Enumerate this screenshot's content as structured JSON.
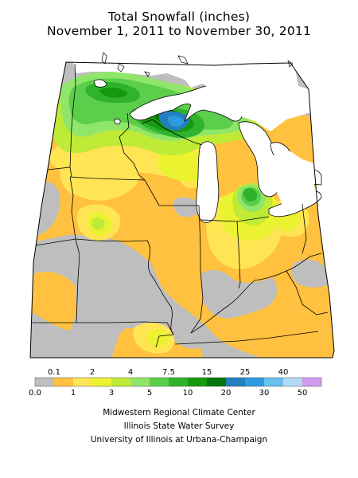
{
  "title": {
    "line1": "Total Snowfall (inches)",
    "line2": "November 1, 2011 to November 30, 2011"
  },
  "colors": {
    "lake": "#ffffff",
    "border": "#000000",
    "panel_background": "#ffffff"
  },
  "legend": {
    "upper_labels": [
      "0.1",
      "2",
      "4",
      "7.5",
      "15",
      "25",
      "40"
    ],
    "lower_labels": [
      "0.0",
      "1",
      "3",
      "5",
      "10",
      "20",
      "30",
      "50"
    ],
    "bins": [
      {
        "from": "0.0",
        "to": "0.1",
        "color": "#bebebe"
      },
      {
        "from": "0.1",
        "to": "1",
        "color": "#ffc13f"
      },
      {
        "from": "1",
        "to": "2",
        "color": "#ffe553"
      },
      {
        "from": "2",
        "to": "3",
        "color": "#ebf22f"
      },
      {
        "from": "3",
        "to": "4",
        "color": "#bfea35"
      },
      {
        "from": "4",
        "to": "5",
        "color": "#90e66a"
      },
      {
        "from": "5",
        "to": "7.5",
        "color": "#5bcf4c"
      },
      {
        "from": "7.5",
        "to": "10",
        "color": "#2fb22c"
      },
      {
        "from": "10",
        "to": "15",
        "color": "#17990f"
      },
      {
        "from": "15",
        "to": "20",
        "color": "#05760b"
      },
      {
        "from": "20",
        "to": "25",
        "color": "#247fbf"
      },
      {
        "from": "25",
        "to": "30",
        "color": "#2e9bde"
      },
      {
        "from": "30",
        "to": "40",
        "color": "#67c1ee"
      },
      {
        "from": "40",
        "to": "50",
        "color": "#b2d9f5"
      },
      {
        "from": "50",
        "to": "",
        "color": "#d29bef"
      }
    ]
  },
  "credits": [
    "Midwestern Regional Climate Center",
    "Illinois State Water Survey",
    "University of Illinois at Urbana-Champaign"
  ]
}
